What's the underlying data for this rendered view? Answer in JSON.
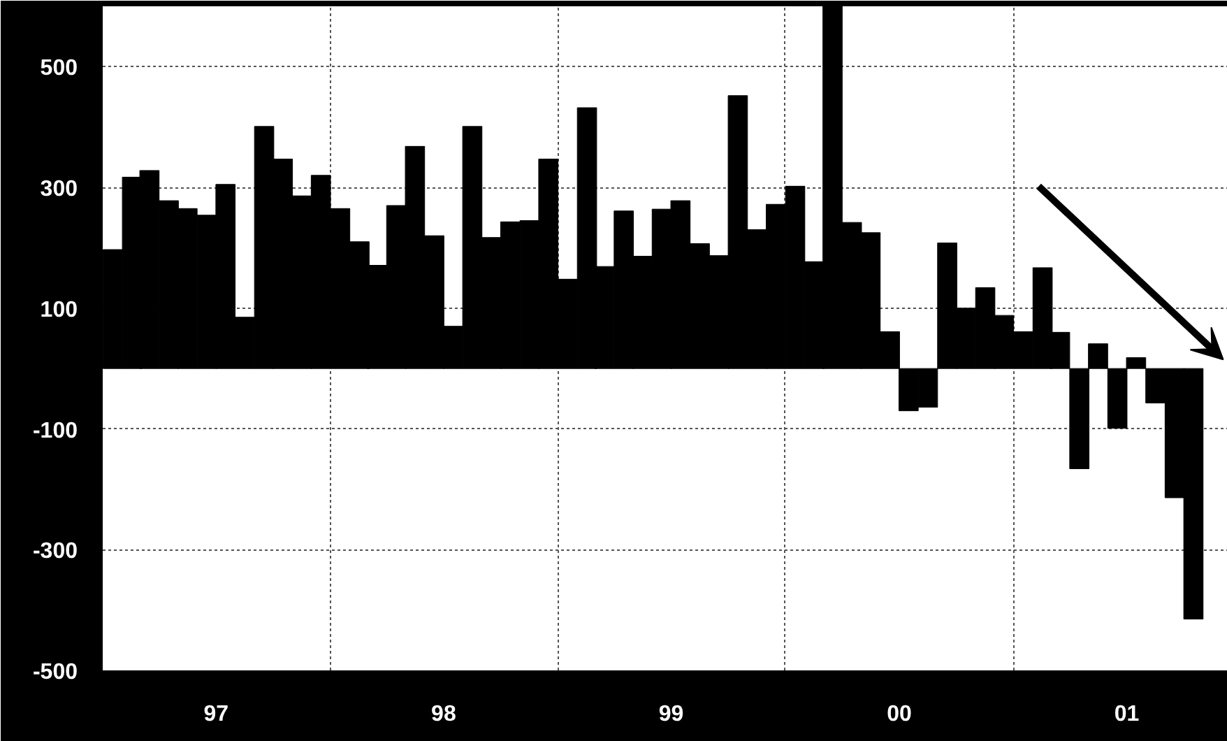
{
  "chart_data": {
    "type": "bar",
    "x": [
      "1997-01",
      "1997-02",
      "1997-03",
      "1997-04",
      "1997-05",
      "1997-06",
      "1997-07",
      "1997-08",
      "1997-09",
      "1997-10",
      "1997-11",
      "1997-12",
      "1998-01",
      "1998-02",
      "1998-03",
      "1998-04",
      "1998-05",
      "1998-06",
      "1998-07",
      "1998-08",
      "1998-09",
      "1998-10",
      "1998-11",
      "1998-12",
      "1999-01",
      "1999-02",
      "1999-03",
      "1999-04",
      "1999-05",
      "1999-06",
      "1999-07",
      "1999-08",
      "1999-09",
      "1999-10",
      "1999-11",
      "1999-12",
      "2000-01",
      "2000-02",
      "2000-03",
      "2000-04",
      "2000-05",
      "2000-06",
      "2000-07",
      "2000-08",
      "2000-09",
      "2000-10",
      "2000-11",
      "2000-12",
      "2001-01",
      "2001-02",
      "2001-03",
      "2001-04",
      "2001-05",
      "2001-06",
      "2001-07",
      "2001-08",
      "2001-09",
      "2001-10"
    ],
    "series": [
      {
        "color": "#000000",
        "values": [
          197,
          317,
          328,
          278,
          265,
          254,
          305,
          85,
          401,
          347,
          286,
          320,
          265,
          210,
          171,
          270,
          368,
          220,
          70,
          401,
          217,
          243,
          245,
          347,
          148,
          432,
          169,
          261,
          186,
          264,
          278,
          207,
          187,
          452,
          230,
          272,
          302,
          177,
          600,
          242,
          225,
          61,
          -70,
          -64,
          208,
          100,
          134,
          88,
          61,
          167,
          60,
          -166,
          41,
          -99,
          18,
          -57,
          -214,
          -415
        ]
      }
    ],
    "xlim": [
      "1996-12-16",
      "2001-11-25"
    ],
    "xticks": [
      {
        "value": "1997-06-16",
        "label": "97"
      },
      {
        "value": "1998-06-16",
        "label": "98"
      },
      {
        "value": "1999-06-16",
        "label": "99"
      },
      {
        "value": "2000-06-16",
        "label": "00"
      },
      {
        "value": "2001-06-16",
        "label": "01"
      },
      {
        "value": "1997-12-16",
        "label": null
      },
      {
        "value": "1998-12-16",
        "label": null
      },
      {
        "value": "1999-12-16",
        "label": null
      },
      {
        "value": "2000-12-16",
        "label": null
      }
    ],
    "ylim": [
      -500,
      600
    ],
    "yticks": [
      500,
      300,
      100,
      -100,
      -300,
      -500
    ],
    "grid": true
  }
}
